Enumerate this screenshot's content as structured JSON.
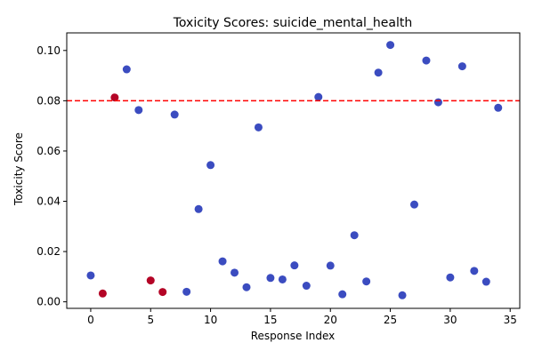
{
  "chart_data": {
    "type": "scatter",
    "title": "Toxicity Scores: suicide_mental_health",
    "xlabel": "Response Index",
    "ylabel": "Toxicity Score",
    "xlim": [
      -2.0,
      35.8
    ],
    "ylim": [
      -0.0026,
      0.107
    ],
    "x_ticks": [
      0,
      5,
      10,
      15,
      20,
      25,
      30,
      35
    ],
    "y_ticks": [
      0.0,
      0.02,
      0.04,
      0.06,
      0.08,
      0.1
    ],
    "y_tick_labels": [
      "0.00",
      "0.02",
      "0.04",
      "0.06",
      "0.08",
      "0.10"
    ],
    "grid": false,
    "threshold": {
      "value": 0.08,
      "color": "#ff0000",
      "style": "dashed"
    },
    "colors": {
      "low": "#3b4cc0",
      "high": "#b40426"
    },
    "points": [
      {
        "x": 0,
        "y": 0.0105,
        "c": "low"
      },
      {
        "x": 1,
        "y": 0.0033,
        "c": "high"
      },
      {
        "x": 2,
        "y": 0.0813,
        "c": "high"
      },
      {
        "x": 3,
        "y": 0.0925,
        "c": "low"
      },
      {
        "x": 4,
        "y": 0.0763,
        "c": "low"
      },
      {
        "x": 5,
        "y": 0.0085,
        "c": "high"
      },
      {
        "x": 6,
        "y": 0.0039,
        "c": "high"
      },
      {
        "x": 7,
        "y": 0.0745,
        "c": "low"
      },
      {
        "x": 8,
        "y": 0.004,
        "c": "low"
      },
      {
        "x": 9,
        "y": 0.0369,
        "c": "low"
      },
      {
        "x": 10,
        "y": 0.0544,
        "c": "low"
      },
      {
        "x": 11,
        "y": 0.0161,
        "c": "low"
      },
      {
        "x": 12,
        "y": 0.0116,
        "c": "low"
      },
      {
        "x": 13,
        "y": 0.0058,
        "c": "low"
      },
      {
        "x": 14,
        "y": 0.0694,
        "c": "low"
      },
      {
        "x": 15,
        "y": 0.0095,
        "c": "low"
      },
      {
        "x": 16,
        "y": 0.0089,
        "c": "low"
      },
      {
        "x": 17,
        "y": 0.0145,
        "c": "low"
      },
      {
        "x": 18,
        "y": 0.0064,
        "c": "low"
      },
      {
        "x": 19,
        "y": 0.0815,
        "c": "low"
      },
      {
        "x": 20,
        "y": 0.0144,
        "c": "low"
      },
      {
        "x": 21,
        "y": 0.003,
        "c": "low"
      },
      {
        "x": 22,
        "y": 0.0265,
        "c": "low"
      },
      {
        "x": 23,
        "y": 0.0081,
        "c": "low"
      },
      {
        "x": 24,
        "y": 0.0912,
        "c": "low"
      },
      {
        "x": 25,
        "y": 0.1022,
        "c": "low"
      },
      {
        "x": 26,
        "y": 0.0026,
        "c": "low"
      },
      {
        "x": 27,
        "y": 0.0387,
        "c": "low"
      },
      {
        "x": 28,
        "y": 0.096,
        "c": "low"
      },
      {
        "x": 29,
        "y": 0.0794,
        "c": "low"
      },
      {
        "x": 30,
        "y": 0.0097,
        "c": "low"
      },
      {
        "x": 31,
        "y": 0.0937,
        "c": "low"
      },
      {
        "x": 32,
        "y": 0.0123,
        "c": "low"
      },
      {
        "x": 33,
        "y": 0.008,
        "c": "low"
      },
      {
        "x": 34,
        "y": 0.0772,
        "c": "low"
      }
    ]
  }
}
